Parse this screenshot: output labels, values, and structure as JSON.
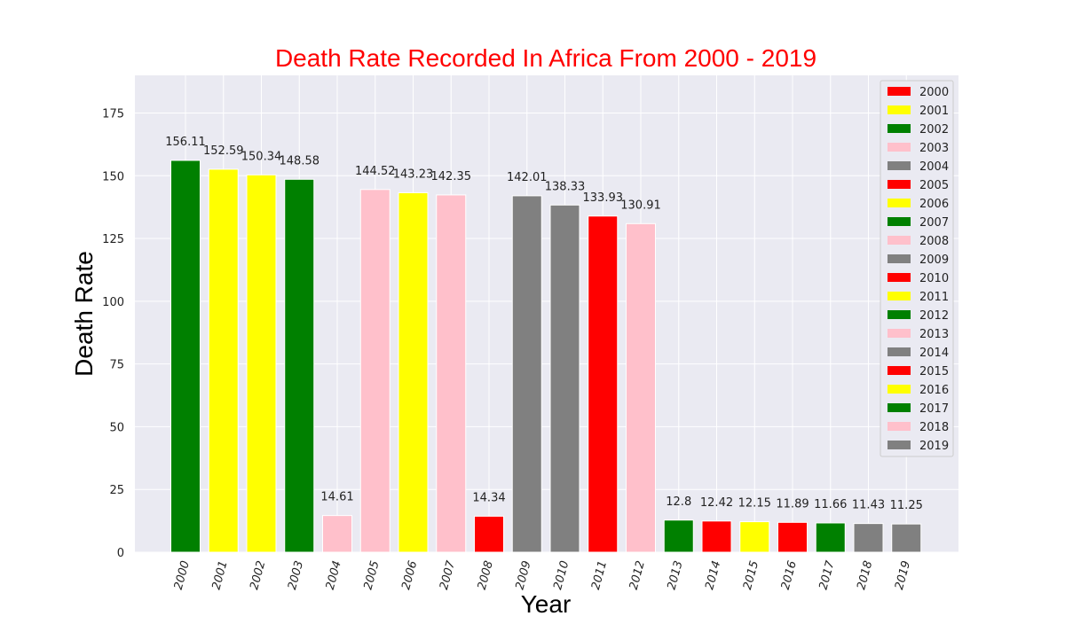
{
  "chart_data": {
    "type": "bar",
    "title": "Death Rate Recorded In Africa From 2000 - 2019",
    "xlabel": "Year",
    "ylabel": "Death Rate",
    "categories": [
      "2000",
      "2001",
      "2002",
      "2003",
      "2004",
      "2005",
      "2006",
      "2007",
      "2008",
      "2009",
      "2010",
      "2011",
      "2012",
      "2013",
      "2014",
      "2015",
      "2016",
      "2017",
      "2018",
      "2019"
    ],
    "values": [
      156.11,
      152.59,
      150.34,
      148.58,
      14.61,
      144.52,
      143.23,
      142.35,
      14.34,
      142.01,
      138.33,
      133.93,
      130.91,
      12.8,
      12.42,
      12.15,
      11.89,
      11.66,
      11.43,
      11.25
    ],
    "data_labels": [
      "156.11",
      "152.59",
      "150.34",
      "148.58",
      "14.61",
      "144.52",
      "143.23",
      "142.35",
      "14.34",
      "142.01",
      "138.33",
      "133.93",
      "130.91",
      "12.8",
      "12.42",
      "12.15",
      "11.89",
      "11.66",
      "11.43",
      "11.25"
    ],
    "bar_colors": [
      "#008000",
      "#ffff00",
      "#ffff00",
      "#008000",
      "#ffc0cb",
      "#ffc0cb",
      "#ffff00",
      "#ffc0cb",
      "#ff0000",
      "#808080",
      "#808080",
      "#ff0000",
      "#ffc0cb",
      "#008000",
      "#ff0000",
      "#ffff00",
      "#ff0000",
      "#008000",
      "#808080",
      "#808080"
    ],
    "ylim": [
      0,
      190
    ],
    "yticks": [
      0,
      25,
      50,
      75,
      100,
      125,
      150,
      175
    ],
    "ytick_labels": [
      "0",
      "25",
      "50",
      "75",
      "100",
      "125",
      "150",
      "175"
    ],
    "grid": true,
    "legend": {
      "placement": "top-right",
      "entries": [
        {
          "label": "2000",
          "color": "#ff0000"
        },
        {
          "label": "2001",
          "color": "#ffff00"
        },
        {
          "label": "2002",
          "color": "#008000"
        },
        {
          "label": "2003",
          "color": "#ffc0cb"
        },
        {
          "label": "2004",
          "color": "#808080"
        },
        {
          "label": "2005",
          "color": "#ff0000"
        },
        {
          "label": "2006",
          "color": "#ffff00"
        },
        {
          "label": "2007",
          "color": "#008000"
        },
        {
          "label": "2008",
          "color": "#ffc0cb"
        },
        {
          "label": "2009",
          "color": "#808080"
        },
        {
          "label": "2010",
          "color": "#ff0000"
        },
        {
          "label": "2011",
          "color": "#ffff00"
        },
        {
          "label": "2012",
          "color": "#008000"
        },
        {
          "label": "2013",
          "color": "#ffc0cb"
        },
        {
          "label": "2014",
          "color": "#808080"
        },
        {
          "label": "2015",
          "color": "#ff0000"
        },
        {
          "label": "2016",
          "color": "#ffff00"
        },
        {
          "label": "2017",
          "color": "#008000"
        },
        {
          "label": "2018",
          "color": "#ffc0cb"
        },
        {
          "label": "2019",
          "color": "#808080"
        }
      ]
    },
    "colors": {
      "title": "#ff0000",
      "plot_background": "#eaeaf2",
      "grid": "#ffffff"
    }
  }
}
